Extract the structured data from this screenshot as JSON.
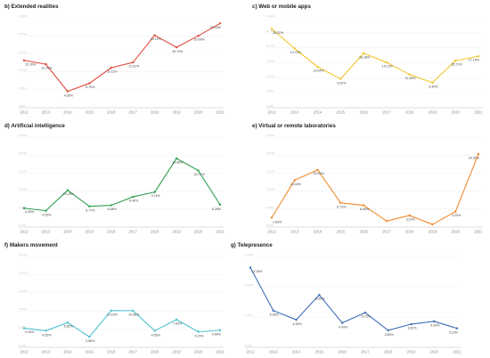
{
  "chart_data": [
    {
      "type": "line",
      "title": "b) Extended realities",
      "color": "#e04c3e",
      "x": [
        "2012",
        "2013",
        "2014",
        "2015",
        "2016",
        "2017",
        "2018",
        "2019",
        "2020",
        "2021"
      ],
      "values": [
        13.16,
        12.1,
        4.55,
        6.79,
        11.11,
        12.61,
        20.13,
        16.79,
        20.0,
        23.44
      ],
      "labels": [
        "13.16%",
        "12.10%",
        "4.55%",
        "6.79%",
        "11.11%",
        "12.61%",
        "20.13%",
        "16.79%",
        "20.00%",
        "23.44%"
      ],
      "yticks": [
        "0.00%",
        "5.00%",
        "10.00%",
        "15.00%",
        "20.00%",
        "25.00%"
      ],
      "ylim": [
        0,
        25
      ],
      "grid": true
    },
    {
      "type": "line",
      "title": "c) Web or mobile apps",
      "color": "#f4c42a",
      "x": [
        "2012",
        "2013",
        "2014",
        "2015",
        "2016",
        "2017",
        "2018",
        "2019",
        "2020",
        "2021"
      ],
      "values": [
        26.32,
        19.75,
        13.64,
        9.62,
        18.18,
        15.13,
        11.08,
        8.4,
        15.71,
        17.19
      ],
      "labels": [
        "26.32%",
        "19.75%",
        "13.64%",
        "9.62%",
        "18.18%",
        "15.13%",
        "11.08%",
        "8.40%",
        "15.71%",
        "17.19%"
      ],
      "yticks": [
        "0.00%",
        "5.00%",
        "10.00%",
        "15.00%",
        "20.00%",
        "25.00%",
        "30.00%"
      ],
      "ylim": [
        0,
        30
      ],
      "grid": true
    },
    {
      "type": "line",
      "title": "d) Artificial intelligence",
      "color": "#2e9e4f",
      "x": [
        "2012",
        "2013",
        "2014",
        "2015",
        "2016",
        "2017",
        "2018",
        "2019",
        "2020",
        "2021"
      ],
      "values": [
        5.26,
        4.55,
        10.23,
        5.77,
        6.06,
        8.4,
        9.74,
        19.08,
        15.71,
        6.25
      ],
      "labels": [
        "5.26%",
        "4.55%",
        "10.23%",
        "5.77%",
        "6.06%",
        "8.40%",
        "9.74%",
        "19.08%",
        "15.71%",
        "6.25%"
      ],
      "yticks": [
        "0.00%",
        "5.00%",
        "10.00%",
        "15.00%",
        "20.00%",
        "25.00%"
      ],
      "ylim": [
        0,
        25
      ],
      "grid": true
    },
    {
      "type": "line",
      "title": "e) Virtual or remote laboratories",
      "color": "#f08a2c",
      "x": [
        "2012",
        "2013",
        "2014",
        "2015",
        "2016",
        "2017",
        "2018",
        "2019",
        "2020",
        "2021"
      ],
      "values": [
        2.63,
        13.04,
        15.91,
        6.73,
        6.06,
        1.68,
        3.23,
        0.76,
        4.29,
        20.31
      ],
      "labels": [
        "2.63%",
        "13.04%",
        "15.91%",
        "6.73%",
        "6.06%",
        "",
        "3.23%",
        "",
        "4.29%",
        "20.31%"
      ],
      "yticks": [
        "0.00%",
        "5.00%",
        "10.00%",
        "15.00%",
        "20.00%",
        "25.00%"
      ],
      "ylim": [
        0,
        25
      ],
      "grid": true
    },
    {
      "type": "line",
      "title": "f) Makers movement",
      "color": "#4cc3d0",
      "x": [
        "2012",
        "2013",
        "2014",
        "2015",
        "2016",
        "2017",
        "2018",
        "2019",
        "2020",
        "2021"
      ],
      "values": [
        5.26,
        4.55,
        6.82,
        2.88,
        10.1,
        10.08,
        4.55,
        7.63,
        4.29,
        4.69
      ],
      "labels": [
        "5.26%",
        "4.55%",
        "6.82%",
        "2.88%",
        "10.10%",
        "10.08%",
        "4.55%",
        "7.63%",
        "4.29%",
        "4.69%"
      ],
      "yticks": [
        "0.00%",
        "5.00%",
        "10.00%",
        "15.00%",
        "20.00%",
        "25.00%"
      ],
      "ylim": [
        0,
        25
      ],
      "grid": true
    },
    {
      "type": "line",
      "title": "g) Telepresence",
      "color": "#3f6fb8",
      "x": [
        "2012",
        "2013",
        "2014",
        "2015",
        "2016",
        "2017",
        "2018",
        "2019",
        "2020",
        "2021"
      ],
      "values": [
        13.16,
        6.06,
        4.55,
        8.65,
        4.04,
        5.72,
        2.8,
        3.82,
        4.29,
        3.13
      ],
      "labels": [
        "13.16%",
        "6.06%",
        "4.55%",
        "8.65%",
        "4.04%",
        "5.72%",
        "2.80%",
        "3.82%",
        "4.29%",
        "3.13%"
      ],
      "yticks": [
        "0.00%",
        "5.00%",
        "10.00%",
        "15.00%"
      ],
      "ylim": [
        0,
        15
      ],
      "grid": true
    }
  ]
}
